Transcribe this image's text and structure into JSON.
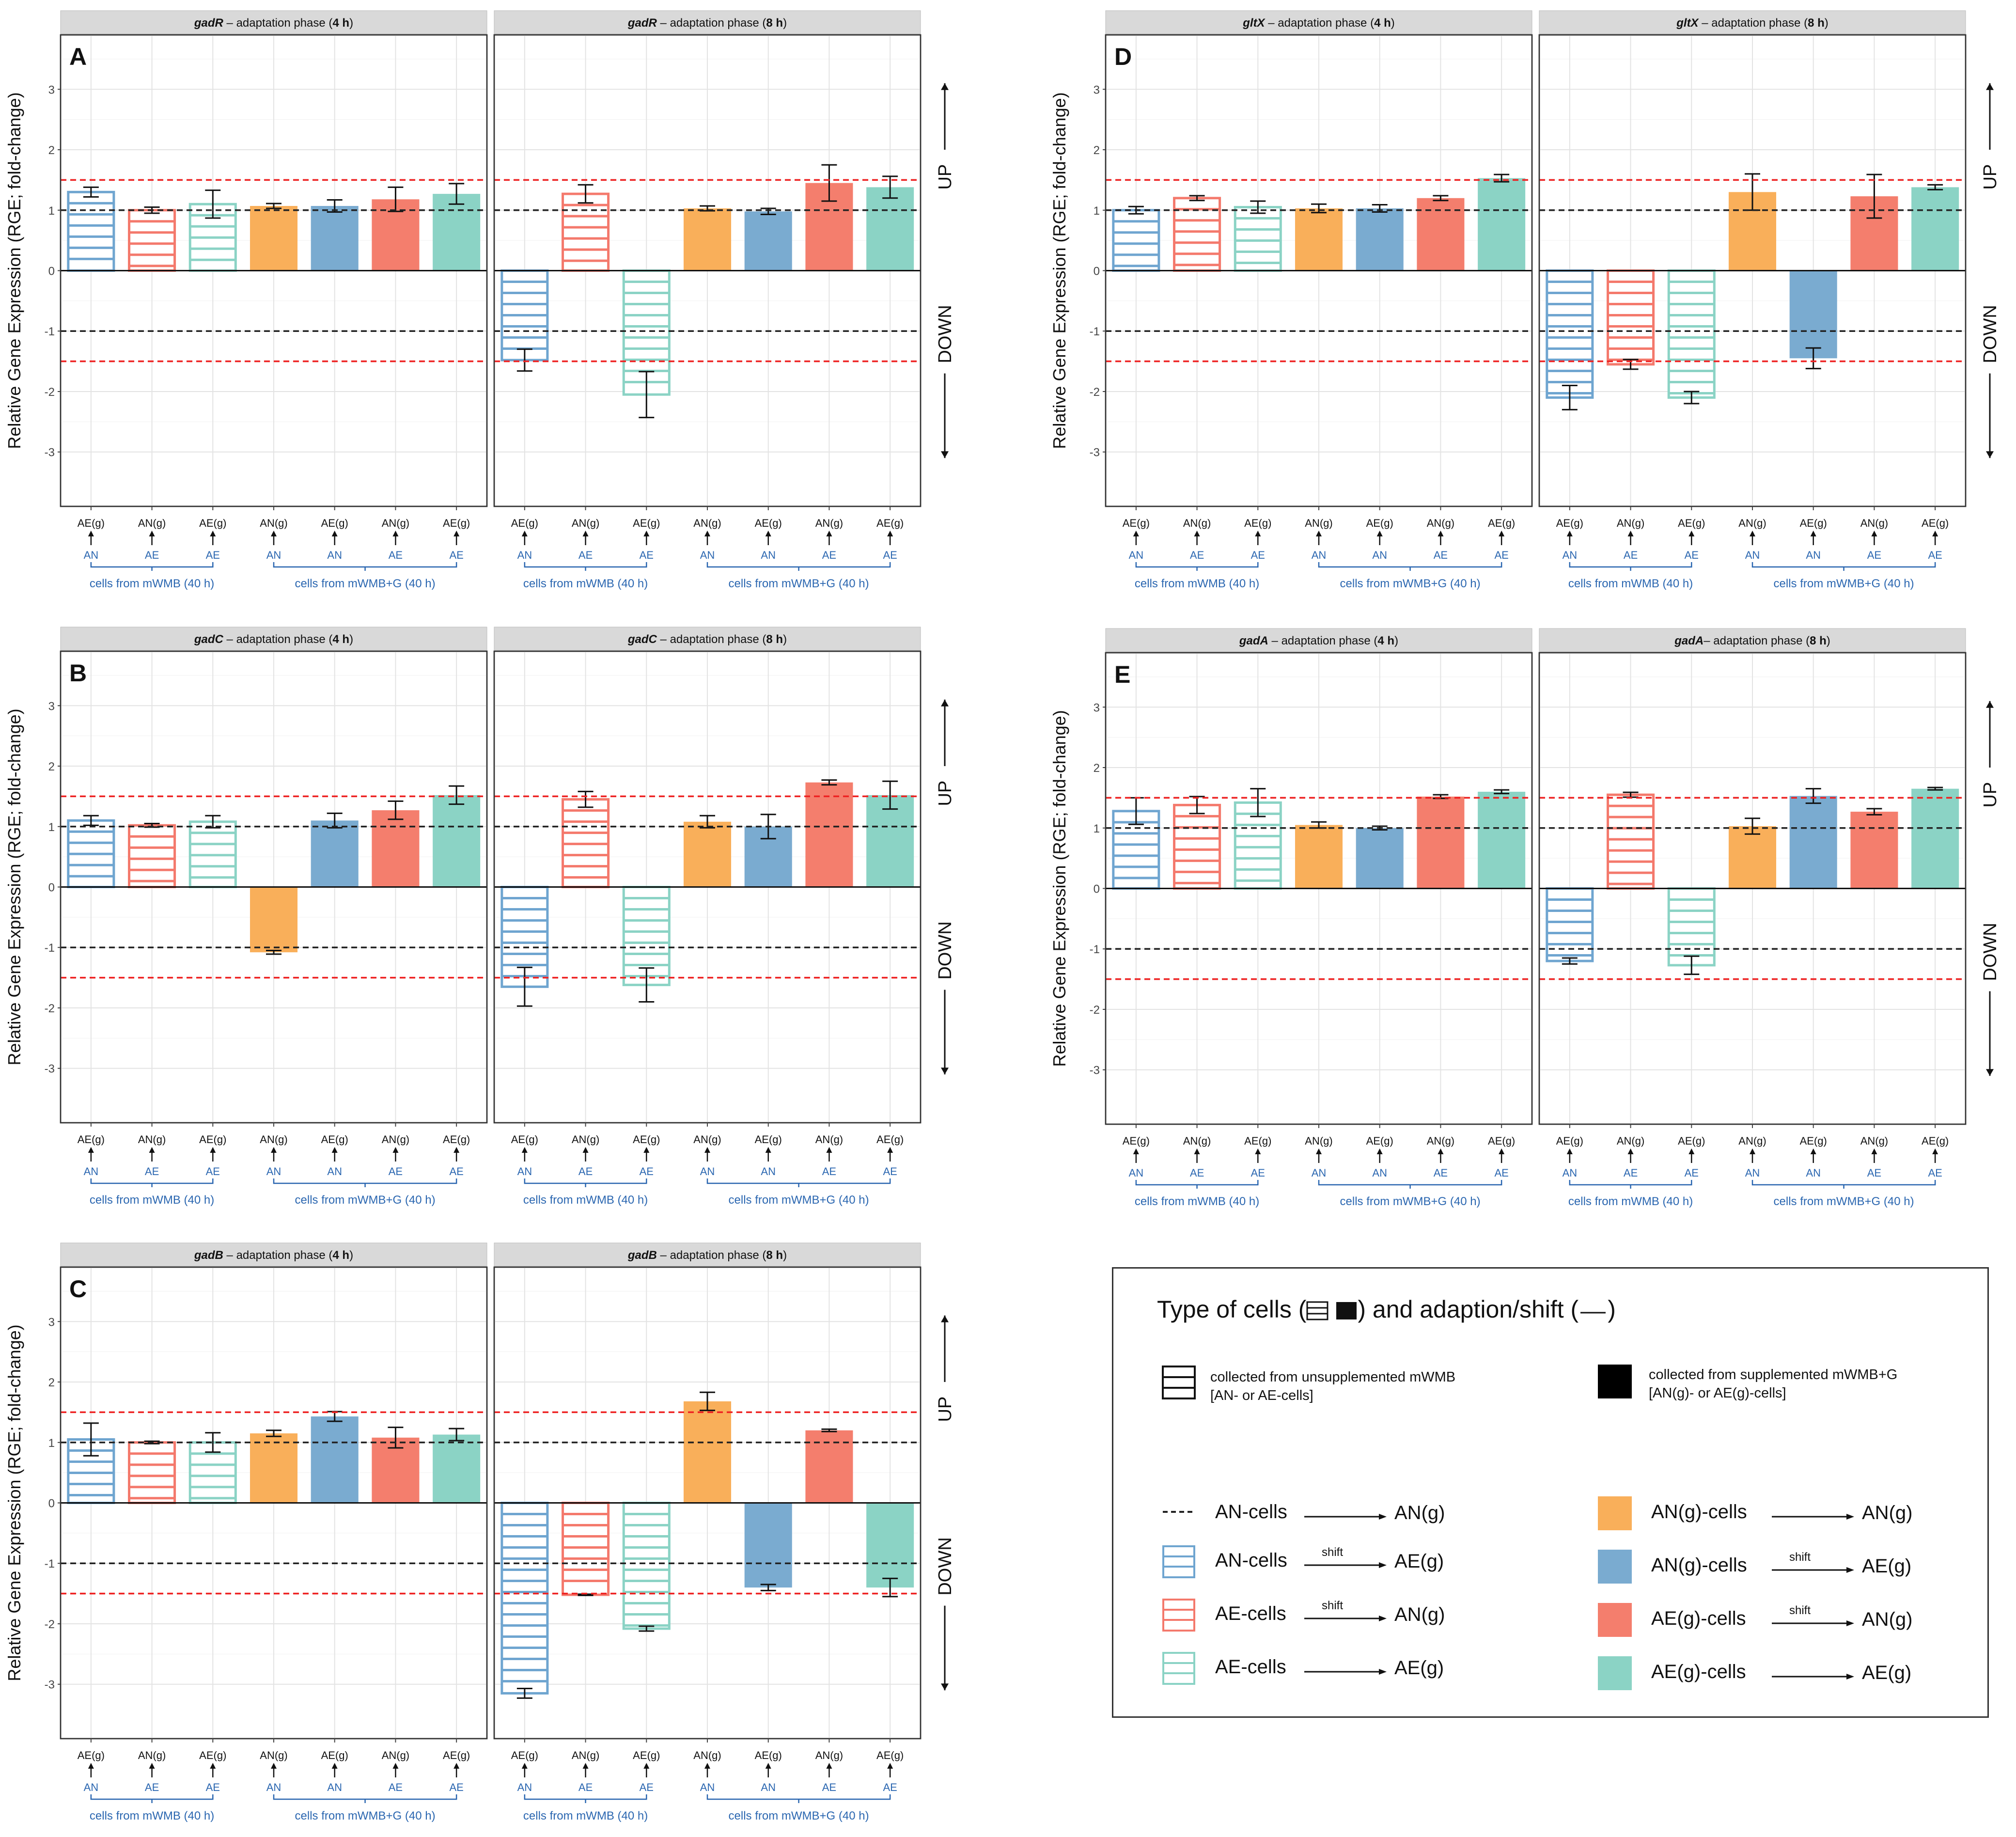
{
  "colors": {
    "AN_to_AEg": "#6FA5D0",
    "AE_to_ANg": "#F4796C",
    "AE_to_AEg": "#8BD3C5",
    "ANg_to_ANg": "#F9AF5A",
    "ANg_to_AEg": "#7AABD0",
    "AEg_to_ANg": "#F47E6D",
    "AEg_to_AEg": "#8BD3C5",
    "ref_black": "#222222",
    "ref_red": "#EE2222",
    "group_label": "#2A66B0",
    "strip": "#D9D9D9"
  },
  "common": {
    "y_axis_label": "Relative Gene Expression (RGE; fold-change)",
    "y_ticks": [
      "3",
      "2",
      "1",
      "0",
      "-1",
      "-2",
      "-3"
    ],
    "up_label": "UP",
    "down_label": "DOWN",
    "categories": [
      {
        "top": "AE(g)",
        "bottom": "AN"
      },
      {
        "top": "AN(g)",
        "bottom": "AE"
      },
      {
        "top": "AE(g)",
        "bottom": "AE"
      },
      {
        "top": "AN(g)",
        "bottom": "AN"
      },
      {
        "top": "AE(g)",
        "bottom": "AN"
      },
      {
        "top": "AN(g)",
        "bottom": "AE"
      },
      {
        "top": "AE(g)",
        "bottom": "AE"
      }
    ],
    "group1_label": "cells from mWMB (40 h)",
    "group2_label": "cells from mWMB+G (40 h)"
  },
  "chart_data": [
    {
      "type": "bar",
      "panel": "A",
      "gene": "gadR",
      "ylim": [
        -3.9,
        3.9
      ],
      "reference_lines": [
        1,
        -1,
        1.5,
        -1.5
      ],
      "facets": [
        {
          "strip": {
            "gene": "gadR",
            "phase": " – adaptation phase (",
            "time": "4 h",
            "close": ")"
          },
          "values": [
            1.3,
            1.0,
            1.1,
            1.07,
            1.07,
            1.18,
            1.27
          ],
          "errors": [
            0.08,
            0.05,
            0.23,
            0.04,
            0.1,
            0.2,
            0.17
          ]
        },
        {
          "strip": {
            "gene": "gadR",
            "phase": " – adaptation phase (",
            "time": "8 h",
            "close": ")"
          },
          "values": [
            -1.48,
            1.27,
            -2.05,
            1.03,
            0.98,
            1.45,
            1.38
          ],
          "errors": [
            0.18,
            0.15,
            0.38,
            0.04,
            0.05,
            0.3,
            0.18
          ]
        }
      ]
    },
    {
      "type": "bar",
      "panel": "B",
      "gene": "gadC",
      "ylim": [
        -3.9,
        3.9
      ],
      "reference_lines": [
        1,
        -1,
        1.5,
        -1.5
      ],
      "facets": [
        {
          "strip": {
            "gene": "gadC",
            "phase": " – adaptation phase (",
            "time": "4 h",
            "close": ")"
          },
          "values": [
            1.1,
            1.02,
            1.08,
            -1.08,
            1.1,
            1.27,
            1.52
          ],
          "errors": [
            0.08,
            0.03,
            0.1,
            0.03,
            0.12,
            0.15,
            0.15
          ]
        },
        {
          "strip": {
            "gene": "gadC",
            "phase": " – adaptation phase (",
            "time": "8 h",
            "close": ")"
          },
          "values": [
            -1.65,
            1.45,
            -1.62,
            1.08,
            1.0,
            1.73,
            1.52
          ],
          "errors": [
            0.32,
            0.13,
            0.28,
            0.1,
            0.2,
            0.04,
            0.23
          ]
        }
      ]
    },
    {
      "type": "bar",
      "panel": "C",
      "gene": "gadB",
      "ylim": [
        -3.9,
        3.9
      ],
      "reference_lines": [
        1,
        -1,
        1.5,
        -1.5
      ],
      "facets": [
        {
          "strip": {
            "gene": "gadB",
            "phase": " – adaptation phase (",
            "time": "4 h",
            "close": ")"
          },
          "values": [
            1.05,
            1.0,
            1.0,
            1.15,
            1.43,
            1.08,
            1.13
          ],
          "errors": [
            0.27,
            0.02,
            0.16,
            0.05,
            0.08,
            0.17,
            0.1
          ]
        },
        {
          "strip": {
            "gene": "gadB",
            "phase": " – adaptation phase (",
            "time": "8 h",
            "close": ")"
          },
          "values": [
            -3.15,
            -1.52,
            -2.08,
            1.68,
            -1.4,
            1.2,
            -1.4
          ],
          "errors": [
            0.08,
            0.01,
            0.04,
            0.15,
            0.05,
            0.02,
            0.15
          ]
        }
      ]
    },
    {
      "type": "bar",
      "panel": "D",
      "gene": "gltX",
      "ylim": [
        -3.9,
        3.9
      ],
      "reference_lines": [
        1,
        -1,
        1.5,
        -1.5
      ],
      "facets": [
        {
          "strip": {
            "gene": "gltX",
            "phase": " – adaptation phase (",
            "time": "4 h",
            "close": ")"
          },
          "values": [
            1.0,
            1.2,
            1.05,
            1.03,
            1.03,
            1.2,
            1.53
          ],
          "errors": [
            0.06,
            0.04,
            0.1,
            0.07,
            0.06,
            0.04,
            0.06
          ]
        },
        {
          "strip": {
            "gene": "gltX",
            "phase": " – adaptation phase (",
            "time": "8 h",
            "close": ")"
          },
          "values": [
            -2.1,
            -1.55,
            -2.1,
            1.3,
            -1.45,
            1.23,
            1.38
          ],
          "errors": [
            0.2,
            0.08,
            0.1,
            0.3,
            0.17,
            0.36,
            0.04
          ]
        }
      ]
    },
    {
      "type": "bar",
      "panel": "E",
      "gene": "gadA",
      "ylim": [
        -3.9,
        3.9
      ],
      "reference_lines": [
        1,
        -1,
        1.5,
        -1.5
      ],
      "facets": [
        {
          "strip": {
            "gene": "gadA",
            "phase": " – adaptation phase (",
            "time": "4 h",
            "close": ")"
          },
          "values": [
            1.28,
            1.38,
            1.42,
            1.05,
            1.0,
            1.52,
            1.6
          ],
          "errors": [
            0.22,
            0.14,
            0.23,
            0.05,
            0.03,
            0.03,
            0.03
          ]
        },
        {
          "strip": {
            "gene": "gadA",
            "phase": "– adaptation phase (",
            "time": "8 h",
            "close": ")"
          },
          "values": [
            -1.2,
            1.55,
            -1.27,
            1.03,
            1.53,
            1.27,
            1.65
          ],
          "errors": [
            0.05,
            0.04,
            0.15,
            0.13,
            0.12,
            0.05,
            0.02
          ]
        }
      ]
    }
  ],
  "legend": {
    "title": "Type of cells (",
    "title_mid": ") and adaption/shift (",
    "title_end": ")",
    "hatched_desc_line1": "collected from unsupplemented mWMB",
    "hatched_desc_line2": "[AN- or AE-cells]",
    "solid_desc_line1": "collected from supplemented mWMB+G",
    "solid_desc_line2": "[AN(g)- or AE(g)-cells]",
    "shift_label": "shift",
    "rows": [
      {
        "key": "dash",
        "from": "AN-cells",
        "to": "AN(g)",
        "shift": false,
        "color": "#222222"
      },
      {
        "key": "hatch",
        "from": "AN-cells",
        "to": "AE(g)",
        "shift": true,
        "color": "#6FA5D0"
      },
      {
        "key": "hatch",
        "from": "AE-cells",
        "to": "AN(g)",
        "shift": true,
        "color": "#F4796C"
      },
      {
        "key": "hatch",
        "from": "AE-cells",
        "to": "AE(g)",
        "shift": false,
        "color": "#8BD3C5"
      },
      {
        "key": "solid",
        "from": "AN(g)-cells",
        "to": "AN(g)",
        "shift": false,
        "color": "#F9AF5A"
      },
      {
        "key": "solid",
        "from": "AN(g)-cells",
        "to": "AE(g)",
        "shift": true,
        "color": "#7AABD0"
      },
      {
        "key": "solid",
        "from": "AE(g)-cells",
        "to": "AN(g)",
        "shift": true,
        "color": "#F47E6D"
      },
      {
        "key": "solid",
        "from": "AE(g)-cells",
        "to": "AE(g)",
        "shift": false,
        "color": "#8BD3C5"
      }
    ]
  }
}
